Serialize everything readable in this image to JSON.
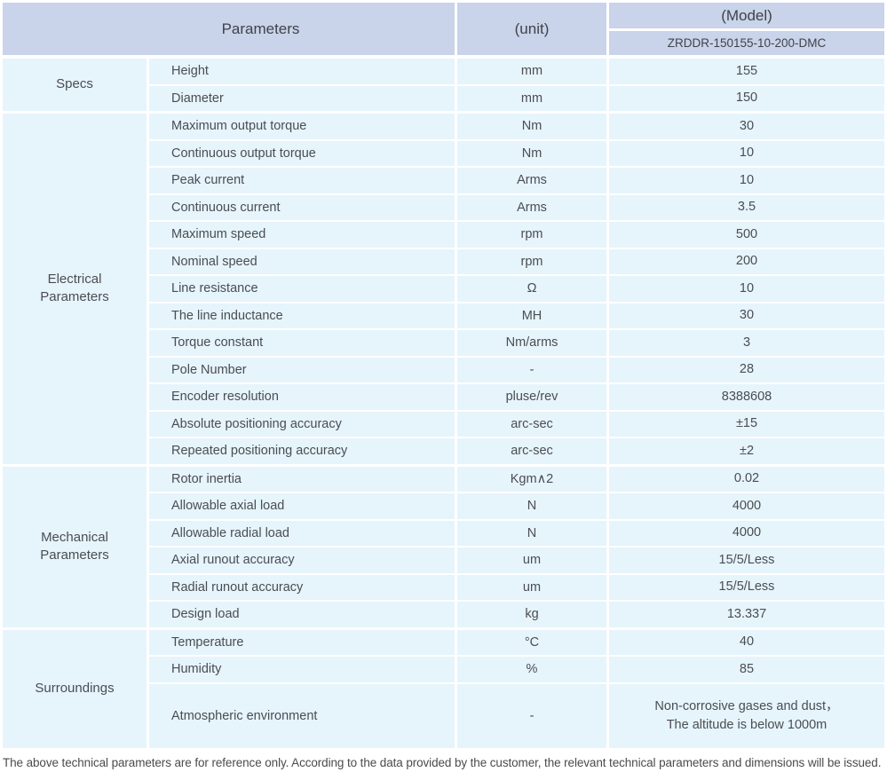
{
  "table": {
    "header": {
      "parameters_label": "Parameters",
      "unit_label": "(unit)",
      "model_label": "(Model)",
      "model_value": "ZRDDR-150155-10-200-DMC"
    },
    "sections": [
      {
        "category": "Specs",
        "rows": [
          {
            "parameter": "Height",
            "unit": "mm",
            "value": "155"
          },
          {
            "parameter": "Diameter",
            "unit": "mm",
            "value": "150"
          }
        ]
      },
      {
        "category": "Electrical Parameters",
        "rows": [
          {
            "parameter": "Maximum output torque",
            "unit": "Nm",
            "value": "30"
          },
          {
            "parameter": "Continuous output torque",
            "unit": "Nm",
            "value": "10"
          },
          {
            "parameter": "Peak current",
            "unit": "Arms",
            "value": "10"
          },
          {
            "parameter": "Continuous current",
            "unit": "Arms",
            "value": "3.5"
          },
          {
            "parameter": "Maximum speed",
            "unit": "rpm",
            "value": "500"
          },
          {
            "parameter": "Nominal speed",
            "unit": "rpm",
            "value": "200"
          },
          {
            "parameter": "Line resistance",
            "unit": "Ω",
            "value": "10"
          },
          {
            "parameter": "The line inductance",
            "unit": "MH",
            "value": "30"
          },
          {
            "parameter": "Torque constant",
            "unit": "Nm/arms",
            "value": "3"
          },
          {
            "parameter": "Pole Number",
            "unit": "-",
            "value": "28"
          },
          {
            "parameter": "Encoder resolution",
            "unit": "pluse/rev",
            "value": "8388608"
          },
          {
            "parameter": "Absolute positioning accuracy",
            "unit": "arc-sec",
            "value": "±15"
          },
          {
            "parameter": "Repeated positioning accuracy",
            "unit": "arc-sec",
            "value": "±2"
          }
        ]
      },
      {
        "category": "Mechanical Parameters",
        "rows": [
          {
            "parameter": "Rotor inertia",
            "unit": "Kgm∧2",
            "value": "0.02"
          },
          {
            "parameter": "Allowable axial load",
            "unit": "N",
            "value": "4000"
          },
          {
            "parameter": "Allowable radial load",
            "unit": "N",
            "value": "4000"
          },
          {
            "parameter": "Axial runout accuracy",
            "unit": "um",
            "value": "15/5/Less"
          },
          {
            "parameter": "Radial runout accuracy",
            "unit": "um",
            "value": "15/5/Less"
          },
          {
            "parameter": "Design load",
            "unit": "kg",
            "value": "13.337"
          }
        ]
      },
      {
        "category": "Surroundings",
        "rows": [
          {
            "parameter": "Temperature",
            "unit": "°C",
            "value": "40"
          },
          {
            "parameter": "Humidity",
            "unit": "%",
            "value": "85"
          },
          {
            "parameter": "Atmospheric environment",
            "unit": "-",
            "value": "Non-corrosive gases and dust，\nThe altitude is below 1000m"
          }
        ]
      }
    ],
    "footer_note": "The above technical parameters are for reference only. According to the data provided by the customer, the relevant technical parameters and dimensions will be issued."
  },
  "colors": {
    "header_bg": "#c9d3e9",
    "cell_bg": "#e6f4fc",
    "text": "#4a4d52",
    "header_text": "#3f434a",
    "separator": "#ffffff"
  }
}
